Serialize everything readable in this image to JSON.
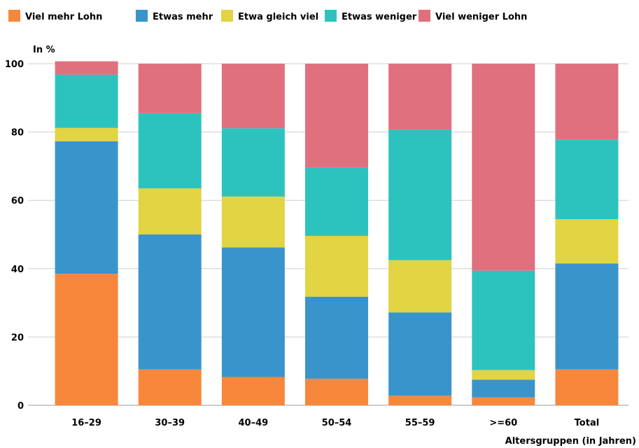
{
  "chart_data": {
    "type": "bar",
    "stacked": true,
    "ylabel": "In %",
    "xlabel": "Altersgruppen (in Jahren)",
    "ylim": [
      0,
      100
    ],
    "yticks": [
      0,
      20,
      40,
      60,
      80,
      100
    ],
    "grid": true,
    "legend_position": "top",
    "categories": [
      "16–29",
      "30–39",
      "40–49",
      "50–54",
      "55–59",
      ">=60",
      "Total"
    ],
    "series": [
      {
        "name": "Viel mehr Lohn",
        "color": "#f7873b",
        "values": [
          38.5,
          10.5,
          8.3,
          7.8,
          2.8,
          2.3,
          10.5
        ]
      },
      {
        "name": "Etwas mehr",
        "color": "#3a94cc",
        "values": [
          38.8,
          39.5,
          37.9,
          24.0,
          24.4,
          5.2,
          31.0
        ]
      },
      {
        "name": "Etwa gleich viel",
        "color": "#e2d443",
        "values": [
          3.9,
          13.5,
          14.9,
          17.8,
          15.3,
          2.8,
          13.0
        ]
      },
      {
        "name": "Etwas weniger",
        "color": "#2cc3bf",
        "values": [
          15.6,
          22.0,
          20.0,
          20.0,
          38.2,
          29.1,
          23.3
        ]
      },
      {
        "name": "Viel weniger Lohn",
        "color": "#e0707e",
        "values": [
          3.9,
          14.5,
          18.9,
          30.4,
          19.3,
          60.6,
          22.2
        ]
      }
    ]
  }
}
